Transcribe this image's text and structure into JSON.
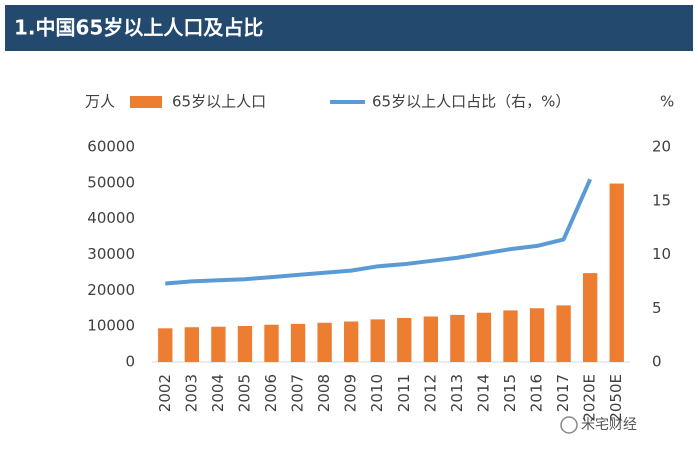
{
  "header": {
    "title": "1.中国65岁以上人口及占比"
  },
  "chart_data": {
    "type": "bar_line",
    "ylabel": "万人",
    "y2label": "%",
    "categories": [
      "2002",
      "2003",
      "2004",
      "2005",
      "2006",
      "2007",
      "2008",
      "2009",
      "2010",
      "2011",
      "2012",
      "2013",
      "2014",
      "2015",
      "2016",
      "2017",
      "2020E",
      "2050E"
    ],
    "series": [
      {
        "name": "65岁以上人口",
        "type": "bar",
        "color": "#ed7d31",
        "values": [
          9400,
          9700,
          9850,
          10050,
          10400,
          10650,
          10950,
          11300,
          11900,
          12300,
          12700,
          13150,
          13750,
          14400,
          15000,
          15800,
          24800,
          49800
        ]
      },
      {
        "name": "65岁以上人口占比（右，%）",
        "type": "line",
        "axis": "y2",
        "color": "#5b9bd5",
        "values": [
          7.3,
          7.5,
          7.6,
          7.7,
          7.9,
          8.1,
          8.3,
          8.5,
          8.9,
          9.1,
          9.4,
          9.7,
          10.1,
          10.5,
          10.8,
          11.4,
          17.0,
          null
        ]
      }
    ],
    "ylim": [
      0,
      60000
    ],
    "yticks": [
      0,
      10000,
      20000,
      30000,
      40000,
      50000,
      60000
    ],
    "y2lim": [
      0,
      20
    ],
    "y2ticks": [
      0,
      5,
      10,
      15,
      20
    ],
    "grid": false
  },
  "watermark": "米宅财经"
}
